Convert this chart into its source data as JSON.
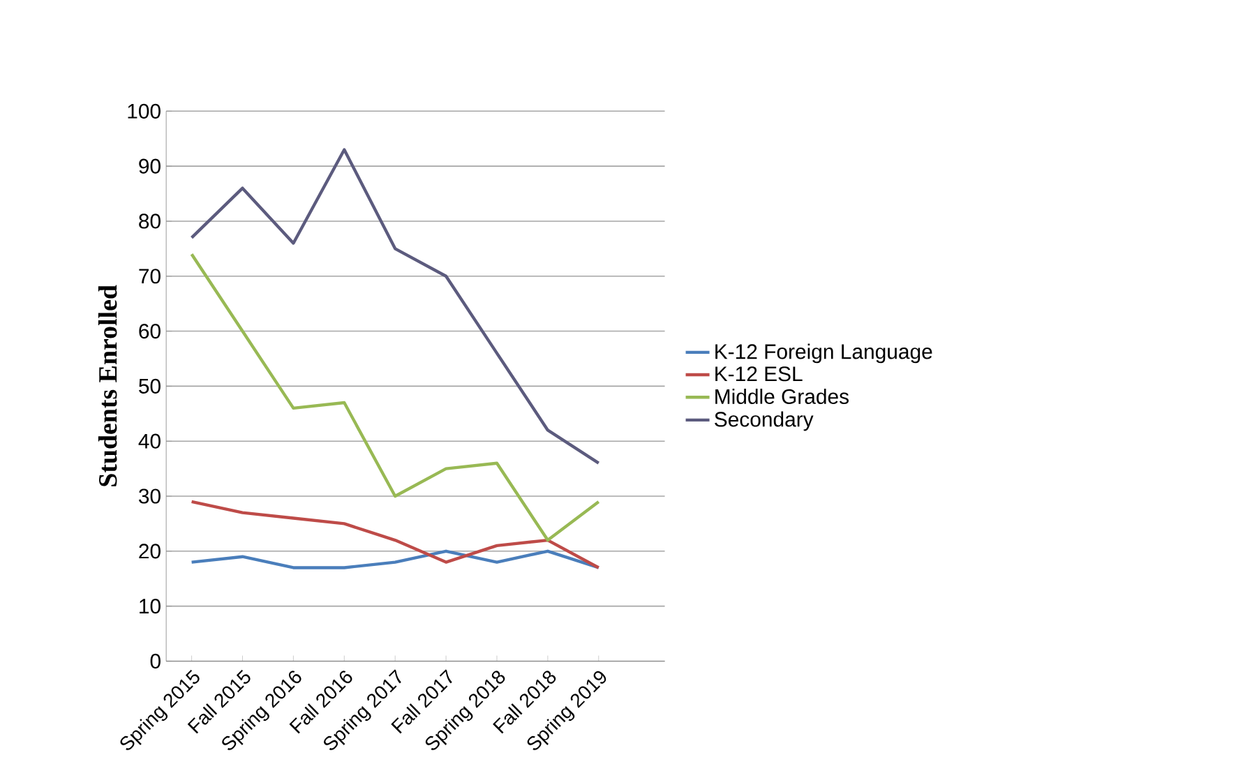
{
  "chart_data": {
    "type": "line",
    "ylabel": "Students Enrolled",
    "categories": [
      "Spring 2015",
      "Fall 2015",
      "Spring 2016",
      "Fall 2016",
      "Spring 2017",
      "Fall 2017",
      "Spring 2018",
      "Fall 2018",
      "Spring 2019"
    ],
    "series": [
      {
        "name": "K-12 Foreign Language",
        "color": "#4a7ebb",
        "values": [
          18,
          19,
          17,
          17,
          18,
          20,
          18,
          20,
          17
        ]
      },
      {
        "name": "K-12 ESL",
        "color": "#be4b48",
        "values": [
          29,
          27,
          26,
          25,
          22,
          18,
          21,
          22,
          17
        ]
      },
      {
        "name": "Middle Grades",
        "color": "#98b954",
        "values": [
          74,
          60,
          46,
          47,
          30,
          35,
          36,
          22,
          29
        ]
      },
      {
        "name": "Secondary",
        "color": "#5c5b7e",
        "values": [
          77,
          86,
          76,
          93,
          75,
          70,
          56,
          42,
          36
        ]
      }
    ],
    "ylim": [
      0,
      100
    ],
    "yticks": [
      0,
      10,
      20,
      30,
      40,
      50,
      60,
      70,
      80,
      90,
      100
    ],
    "grid": "y",
    "legend": "right",
    "marker": "none",
    "line_style": "solid"
  }
}
